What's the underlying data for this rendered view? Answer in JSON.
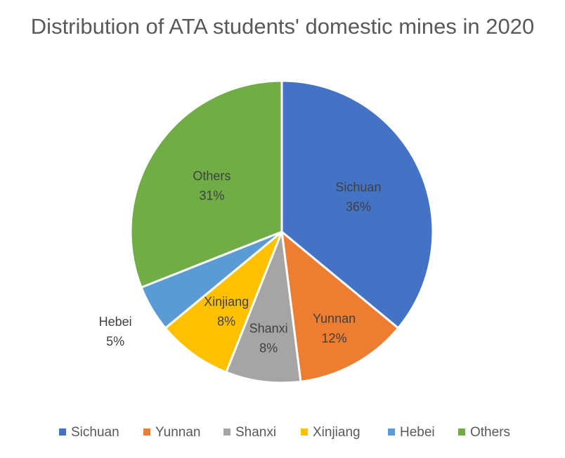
{
  "chart_data": {
    "type": "pie",
    "title": "Distribution of ATA students' domestic mines in 2020",
    "categories": [
      "Sichuan",
      "Yunnan",
      "Shanxi",
      "Xinjiang",
      "Hebei",
      "Others"
    ],
    "values": [
      36,
      12,
      8,
      8,
      5,
      31
    ],
    "value_labels": [
      "36%",
      "12%",
      "8%",
      "8%",
      "5%",
      "31%"
    ],
    "colors": [
      "#4472C4",
      "#ED7D31",
      "#A5A5A5",
      "#FFC000",
      "#5B9BD5",
      "#70AD47"
    ],
    "legend_position": "bottom",
    "start_angle": "12 o'clock",
    "direction": "clockwise"
  }
}
